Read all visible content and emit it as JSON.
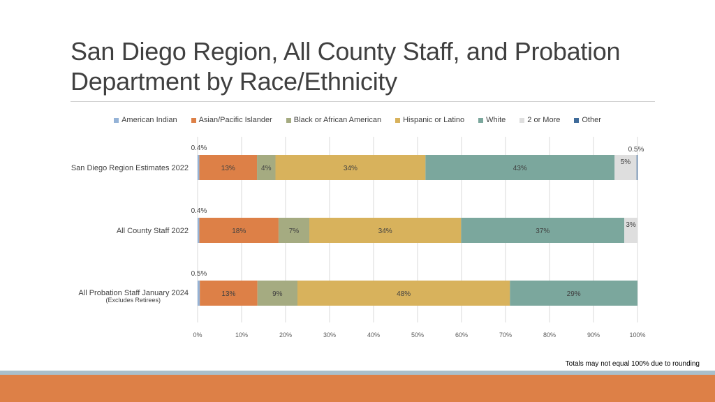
{
  "title": {
    "line1": "San Diego Region, All County Staff, and Probation",
    "line2": "Department by Race/Ethnicity"
  },
  "footnote": "Totals may not equal 100% due to rounding",
  "chart_data": {
    "type": "bar",
    "orientation": "horizontal",
    "stacked": true,
    "xlim": [
      0,
      100
    ],
    "xticks": [
      "0%",
      "10%",
      "20%",
      "30%",
      "40%",
      "50%",
      "60%",
      "70%",
      "80%",
      "90%",
      "100%"
    ],
    "xtick_values": [
      0,
      10,
      20,
      30,
      40,
      50,
      60,
      70,
      80,
      90,
      100
    ],
    "grid": true,
    "legend": "top",
    "series": [
      {
        "name": "American Indian",
        "color": "#95b3d7"
      },
      {
        "name": "Asian/Pacific Islander",
        "color": "#dd8047"
      },
      {
        "name": "Black or African American",
        "color": "#a5ab81"
      },
      {
        "name": "Hispanic or Latino",
        "color": "#d8b25c"
      },
      {
        "name": "White",
        "color": "#7ba79d"
      },
      {
        "name": "2 or More",
        "color": "#dedede"
      },
      {
        "name": "Other",
        "color": "#3f6b9a"
      }
    ],
    "categories": [
      {
        "label": "San Diego Region Estimates 2022",
        "sublabel": "",
        "values": [
          0.4,
          13.1,
          4.2,
          34.1,
          43.0,
          5.0,
          0.5
        ],
        "labels": [
          "0.4%",
          "13%",
          "4%",
          "34%",
          "43%",
          "5%",
          "0.5%"
        ]
      },
      {
        "label": "All County Staff 2022",
        "sublabel": "",
        "values": [
          0.4,
          18.0,
          7.0,
          34.5,
          37.1,
          3.0,
          0
        ],
        "labels": [
          "0.4%",
          "18%",
          "7%",
          "34%",
          "37%",
          "3%",
          ""
        ]
      },
      {
        "label": "All Probation Staff January 2024",
        "sublabel": "(Excludes Retirees)",
        "values": [
          0.5,
          13.1,
          9.1,
          48.3,
          29.0,
          0,
          0
        ],
        "labels": [
          "0.5%",
          "13%",
          "9%",
          "48%",
          "29%",
          "",
          ""
        ]
      }
    ]
  }
}
